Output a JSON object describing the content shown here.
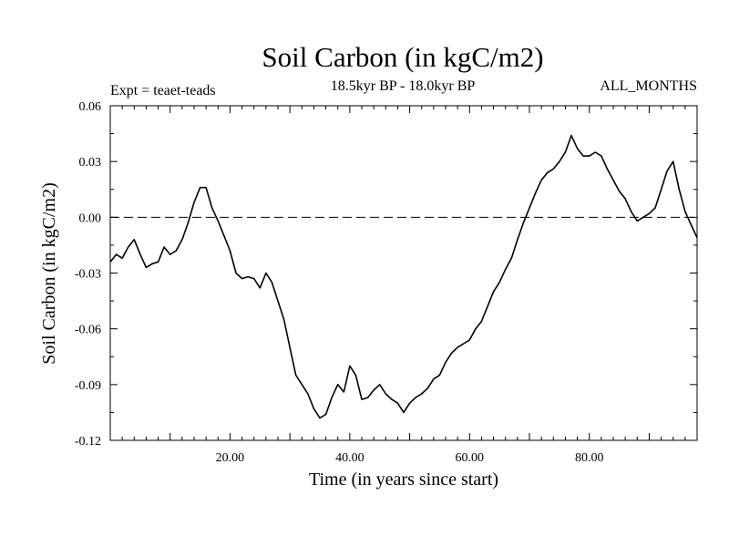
{
  "chart_data": {
    "type": "line",
    "title": "Soil Carbon (in kgC/m2)",
    "subtitle": "18.5kyr BP - 18.0kyr BP",
    "experiment": "Expt = teaet-teads",
    "season": "ALL_MONTHS",
    "xlabel": "Time (in years since start)",
    "ylabel": "Soil Carbon (in kgC/m2)",
    "xlim": [
      0,
      98
    ],
    "ylim": [
      -0.12,
      0.06
    ],
    "x_ticks": [
      20,
      40,
      60,
      80
    ],
    "x_tick_labels": [
      "20.00",
      "40.00",
      "60.00",
      "80.00"
    ],
    "y_ticks": [
      -0.12,
      -0.09,
      -0.06,
      -0.03,
      0.0,
      0.03,
      0.06
    ],
    "y_tick_labels": [
      "-0.12",
      "-0.09",
      "-0.06",
      "-0.03",
      "0.00",
      "0.03",
      "0.06"
    ],
    "reference_line": {
      "y": 0.0,
      "style": "dashed"
    },
    "series": [
      {
        "name": "Soil Carbon",
        "x": [
          0,
          1,
          2,
          3,
          4,
          5,
          6,
          7,
          8,
          9,
          10,
          11,
          12,
          13,
          14,
          15,
          16,
          17,
          18,
          19,
          20,
          21,
          22,
          23,
          24,
          25,
          26,
          27,
          28,
          29,
          30,
          31,
          32,
          33,
          34,
          35,
          36,
          37,
          38,
          39,
          40,
          41,
          42,
          43,
          44,
          45,
          46,
          47,
          48,
          49,
          50,
          51,
          52,
          53,
          54,
          55,
          56,
          57,
          58,
          59,
          60,
          61,
          62,
          63,
          64,
          65,
          66,
          67,
          68,
          69,
          70,
          71,
          72,
          73,
          74,
          75,
          76,
          77,
          78,
          79,
          80,
          81,
          82,
          83,
          84,
          85,
          86,
          87,
          88,
          89,
          90,
          91,
          92,
          93,
          94,
          95,
          96,
          97,
          98
        ],
        "values": [
          -0.024,
          -0.02,
          -0.022,
          -0.016,
          -0.012,
          -0.02,
          -0.027,
          -0.025,
          -0.024,
          -0.016,
          -0.02,
          -0.018,
          -0.012,
          -0.003,
          0.008,
          0.016,
          0.016,
          0.005,
          -0.002,
          -0.01,
          -0.018,
          -0.03,
          -0.033,
          -0.032,
          -0.033,
          -0.038,
          -0.03,
          -0.035,
          -0.045,
          -0.055,
          -0.07,
          -0.085,
          -0.09,
          -0.095,
          -0.103,
          -0.108,
          -0.106,
          -0.097,
          -0.09,
          -0.094,
          -0.08,
          -0.085,
          -0.098,
          -0.097,
          -0.093,
          -0.09,
          -0.095,
          -0.098,
          -0.1,
          -0.105,
          -0.1,
          -0.097,
          -0.095,
          -0.092,
          -0.087,
          -0.085,
          -0.078,
          -0.073,
          -0.07,
          -0.068,
          -0.066,
          -0.06,
          -0.056,
          -0.048,
          -0.04,
          -0.035,
          -0.028,
          -0.022,
          -0.012,
          -0.003,
          0.005,
          0.013,
          0.02,
          0.024,
          0.026,
          0.03,
          0.035,
          0.044,
          0.037,
          0.033,
          0.033,
          0.035,
          0.033,
          0.026,
          0.02,
          0.014,
          0.01,
          0.003,
          -0.002,
          0.0,
          0.002,
          0.005,
          0.015,
          0.025,
          0.03,
          0.015,
          0.003,
          -0.004,
          -0.011
        ]
      }
    ]
  }
}
